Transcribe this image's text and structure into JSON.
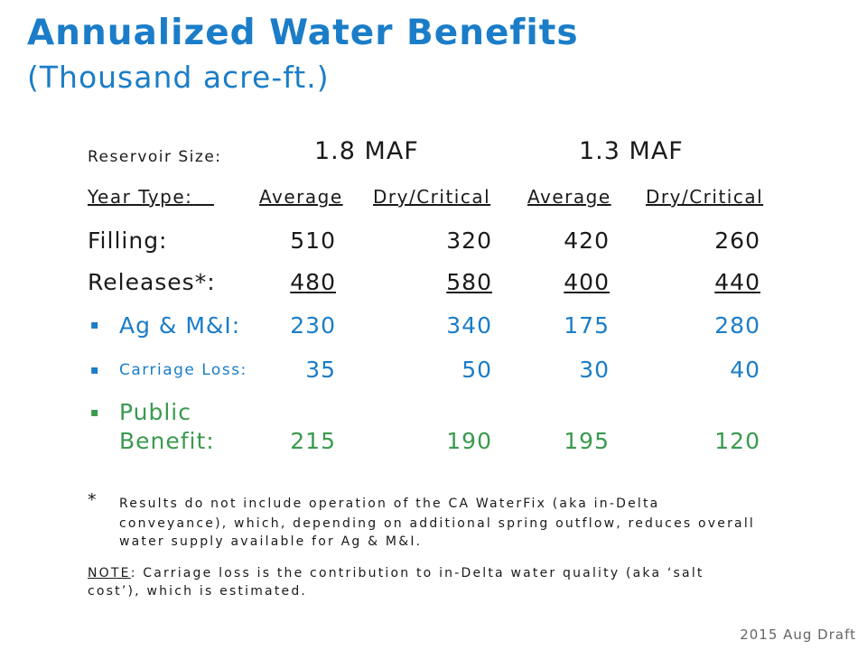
{
  "title": "Annualized Water Benefits",
  "subtitle": "(Thousand acre-ft.)",
  "reservoir_label": "Reservoir Size:",
  "sizes": [
    "1.8 MAF",
    "1.3 MAF"
  ],
  "year_type_label": "Year Type:",
  "year_types": [
    "Average",
    "Dry/Critical",
    "Average",
    "Dry/Critical"
  ],
  "rows": [
    {
      "bullet": "",
      "label": "Filling:",
      "values": [
        "510",
        "320",
        "420",
        "260"
      ]
    },
    {
      "bullet": "",
      "label": "Releases*:",
      "values": [
        "480",
        "580",
        "400",
        "440"
      ]
    },
    {
      "bullet": "▪",
      "label": "Ag & M&I:",
      "values": [
        "230",
        "340",
        "175",
        "280"
      ]
    },
    {
      "bullet": "▪",
      "label": "Carriage Loss:",
      "values": [
        "35",
        "50",
        "30",
        "40"
      ]
    },
    {
      "bullet": "▪",
      "label_line1": "Public",
      "label": "Benefit:",
      "values": [
        "215",
        "190",
        "195",
        "120"
      ]
    }
  ],
  "footnote_mark": "*",
  "footnote_text": [
    "Results do not include operation of the CA WaterFix (aka in-Delta",
    "conveyance), which, depending on additional spring outflow, reduces overall",
    "water supply available for Ag & M&I."
  ],
  "note_label": "NOTE",
  "note_text": [
    ": Carriage loss is the contribution to in-Delta water quality (aka ‘salt",
    "cost’), which is estimated."
  ],
  "draft_label": "2015 Aug Draft",
  "colors": {
    "heading": "#1b7dc8",
    "ag_carriage": "#1b7dc8",
    "public_benefit": "#3a9a4f"
  }
}
